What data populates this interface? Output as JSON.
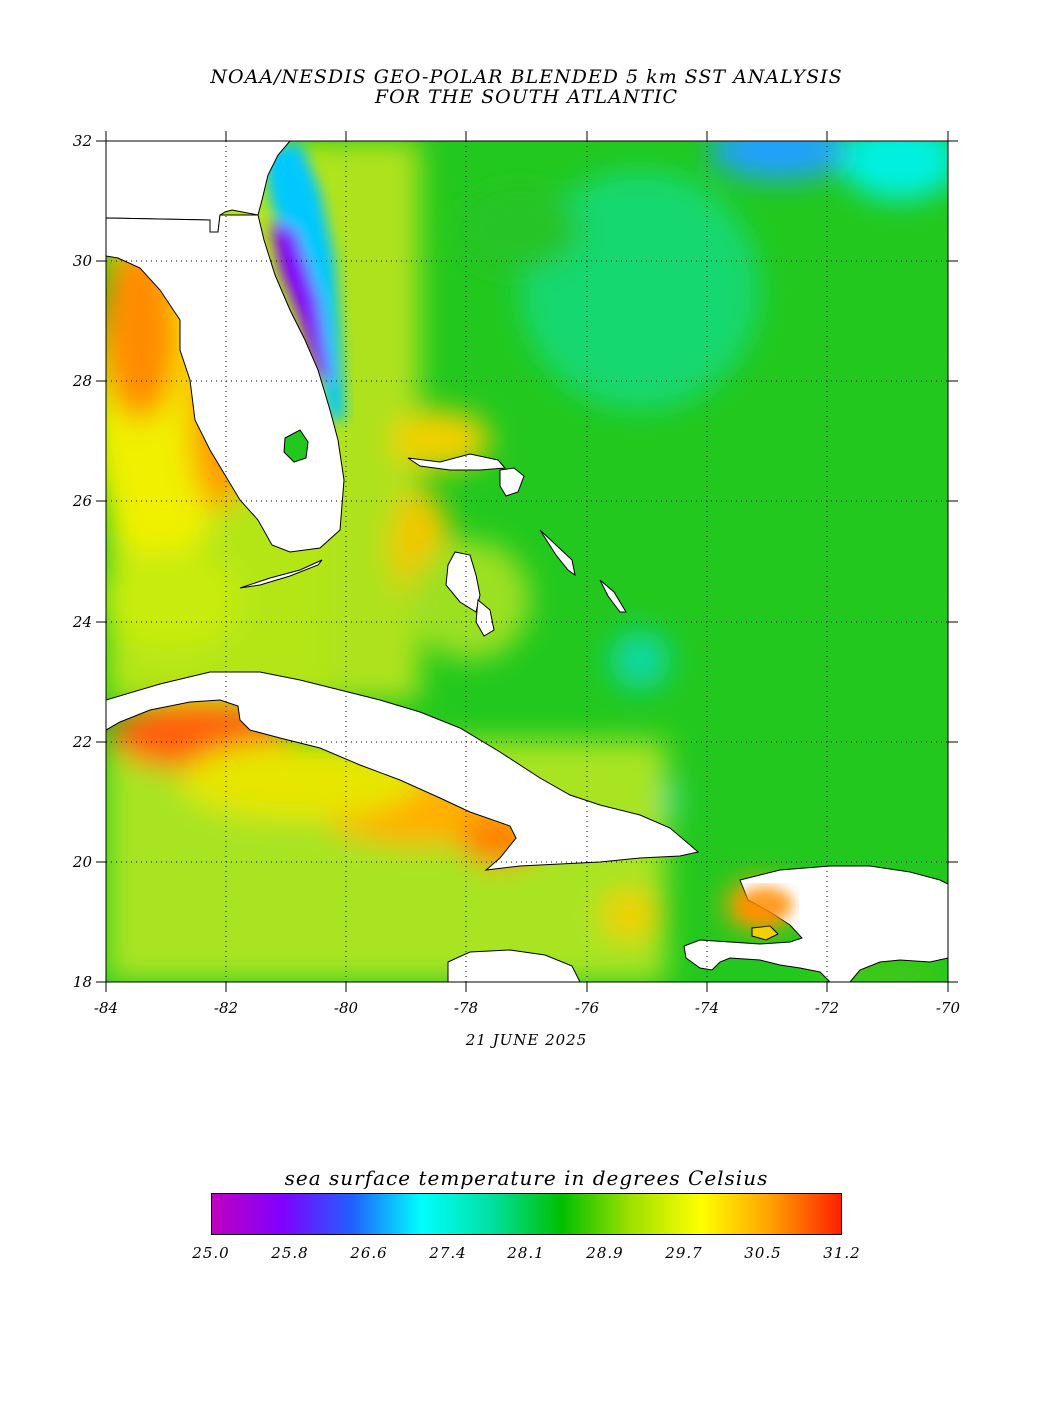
{
  "header": {
    "title_line1": "NOAA/NESDIS GEO-POLAR BLENDED 5 km SST ANALYSIS",
    "title_line2": "FOR THE SOUTH ATLANTIC"
  },
  "map": {
    "lon_range": [
      -84,
      -70
    ],
    "lat_range": [
      18,
      32
    ],
    "x_tick_labels": [
      "-84",
      "-82",
      "-80",
      "-78",
      "-76",
      "-74",
      "-72",
      "-70"
    ],
    "y_tick_labels": [
      "18",
      "20",
      "22",
      "24",
      "26",
      "28",
      "30",
      "32"
    ],
    "gridlines": "dotted",
    "land_color": "#ffffff",
    "regions": [
      "Florida",
      "Bahamas",
      "Cuba",
      "Hispaniola",
      "Jamaica",
      "Gulf of Mexico",
      "Atlantic Ocean"
    ]
  },
  "footer": {
    "date": "21 JUNE 2025"
  },
  "legend": {
    "title": "sea surface temperature in degrees Celsius",
    "tick_labels": [
      "25.0",
      "25.8",
      "26.6",
      "27.4",
      "28.1",
      "28.9",
      "29.7",
      "30.5",
      "31.2"
    ],
    "range": [
      25.0,
      31.2
    ],
    "colors": [
      "#c000c0",
      "#8000ff",
      "#2060ff",
      "#00ffff",
      "#00e0a0",
      "#00c000",
      "#a0e000",
      "#ffff00",
      "#ffa000",
      "#ff2000"
    ]
  }
}
